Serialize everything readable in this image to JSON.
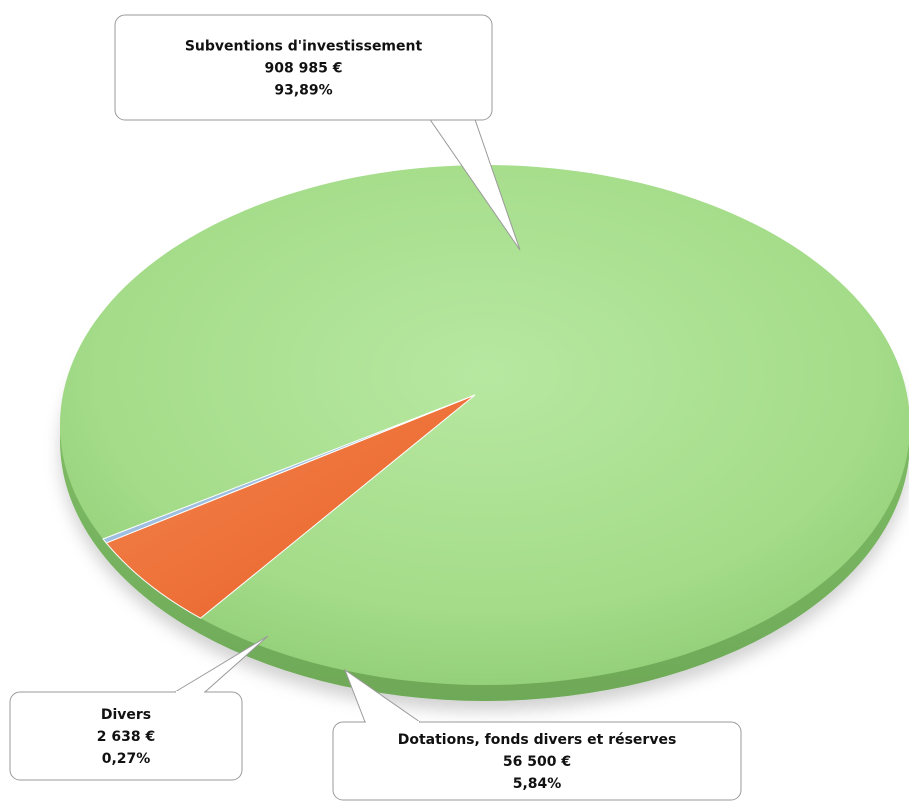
{
  "chart_data": {
    "type": "pie",
    "title": "",
    "unit": "€",
    "slices": [
      {
        "label": "Subventions d'investissement",
        "value_text": "908 985 €",
        "percent_text": "93,89%",
        "value": 908985,
        "percent": 93.89,
        "color": "#a6df8c"
      },
      {
        "label": "Dotations, fonds divers et réserves",
        "value_text": "56 500 €",
        "percent_text": "5,84%",
        "value": 56500,
        "percent": 5.84,
        "color": "#f1743f"
      },
      {
        "label": "Divers",
        "value_text": "2 638 €",
        "percent_text": "0,27%",
        "value": 2638,
        "percent": 0.27,
        "color": "#9ebfe0"
      }
    ],
    "legend": "none",
    "style": "3d-tilted"
  }
}
